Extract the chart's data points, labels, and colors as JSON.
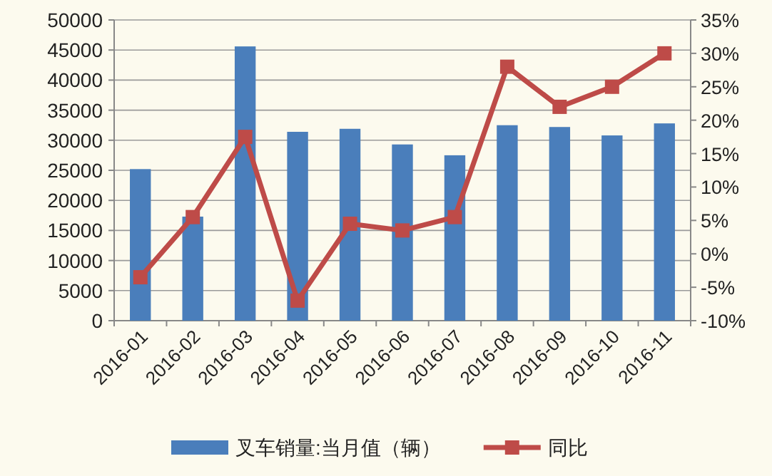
{
  "chart_data": {
    "type": "bar",
    "categories": [
      "2016-01",
      "2016-02",
      "2016-03",
      "2016-04",
      "2016-05",
      "2016-06",
      "2016-07",
      "2016-08",
      "2016-09",
      "2016-10",
      "2016-11"
    ],
    "series": [
      {
        "name": "叉车销量:当月值（辆）",
        "color": "#4a7ebb",
        "values": [
          25200,
          17300,
          45600,
          31400,
          31900,
          29300,
          27500,
          32500,
          32200,
          30800,
          32800
        ]
      },
      {
        "name": "同比",
        "type": "line",
        "axis": "y2",
        "color": "#be4b48",
        "marker": "square",
        "values": [
          -3.5,
          5.5,
          17.5,
          -7,
          4.5,
          3.5,
          5.5,
          28,
          22,
          25,
          30
        ]
      }
    ],
    "ylim": [
      0,
      50000
    ],
    "yticks": [
      0,
      5000,
      10000,
      15000,
      20000,
      25000,
      30000,
      35000,
      40000,
      45000,
      50000
    ],
    "y2lim": [
      -10,
      35
    ],
    "y2ticks": [
      {
        "value": -10,
        "label": "-10%"
      },
      {
        "value": -5,
        "label": "-5%"
      },
      {
        "value": 0,
        "label": "0%"
      },
      {
        "value": 5,
        "label": "5%"
      },
      {
        "value": 10,
        "label": "10%"
      },
      {
        "value": 15,
        "label": "15%"
      },
      {
        "value": 20,
        "label": "20%"
      },
      {
        "value": 25,
        "label": "25%"
      },
      {
        "value": 30,
        "label": "30%"
      },
      {
        "value": 35,
        "label": "35%"
      }
    ],
    "grid": "y",
    "legend": "bottom"
  }
}
